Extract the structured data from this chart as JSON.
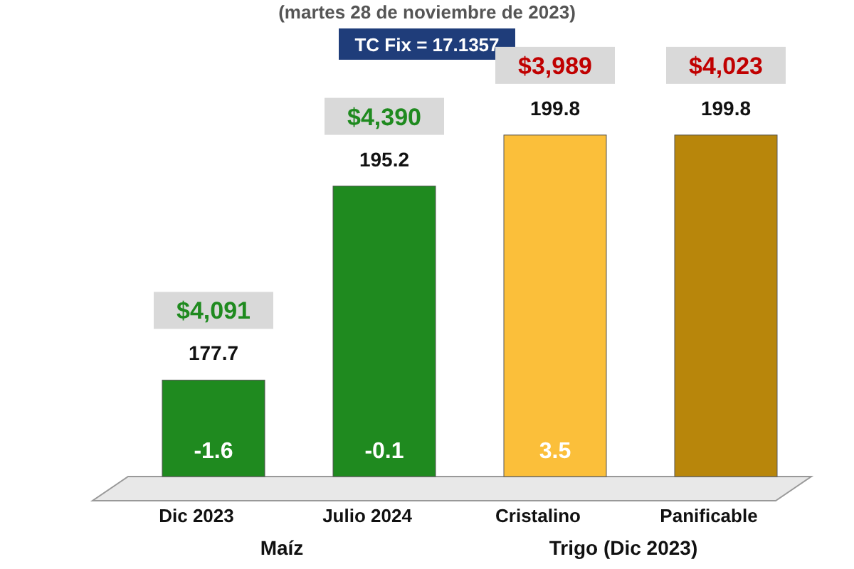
{
  "chart_data": {
    "type": "bar",
    "subtitle": "(martes 28 de noviembre de 2023)",
    "categories": [
      "Dic 2023",
      "Julio 2024",
      "Cristalino",
      "Panificable"
    ],
    "values": [
      177.7,
      195.2,
      199.8,
      199.8
    ],
    "colors": [
      "#1f8a1f",
      "#1f8a1f",
      "#fbbf3a",
      "#b8860b"
    ],
    "ylim": [
      169,
      203
    ],
    "tick_labels": false,
    "data_labels": true,
    "annotations": [
      "TC Fix = 17.1357",
      "Maíz",
      "Trigo (Dic 2023)",
      "$4,091",
      "$4,390",
      "$3,989",
      "$4,023",
      "-1.6",
      "-0.1",
      "3.5"
    ]
  }
}
